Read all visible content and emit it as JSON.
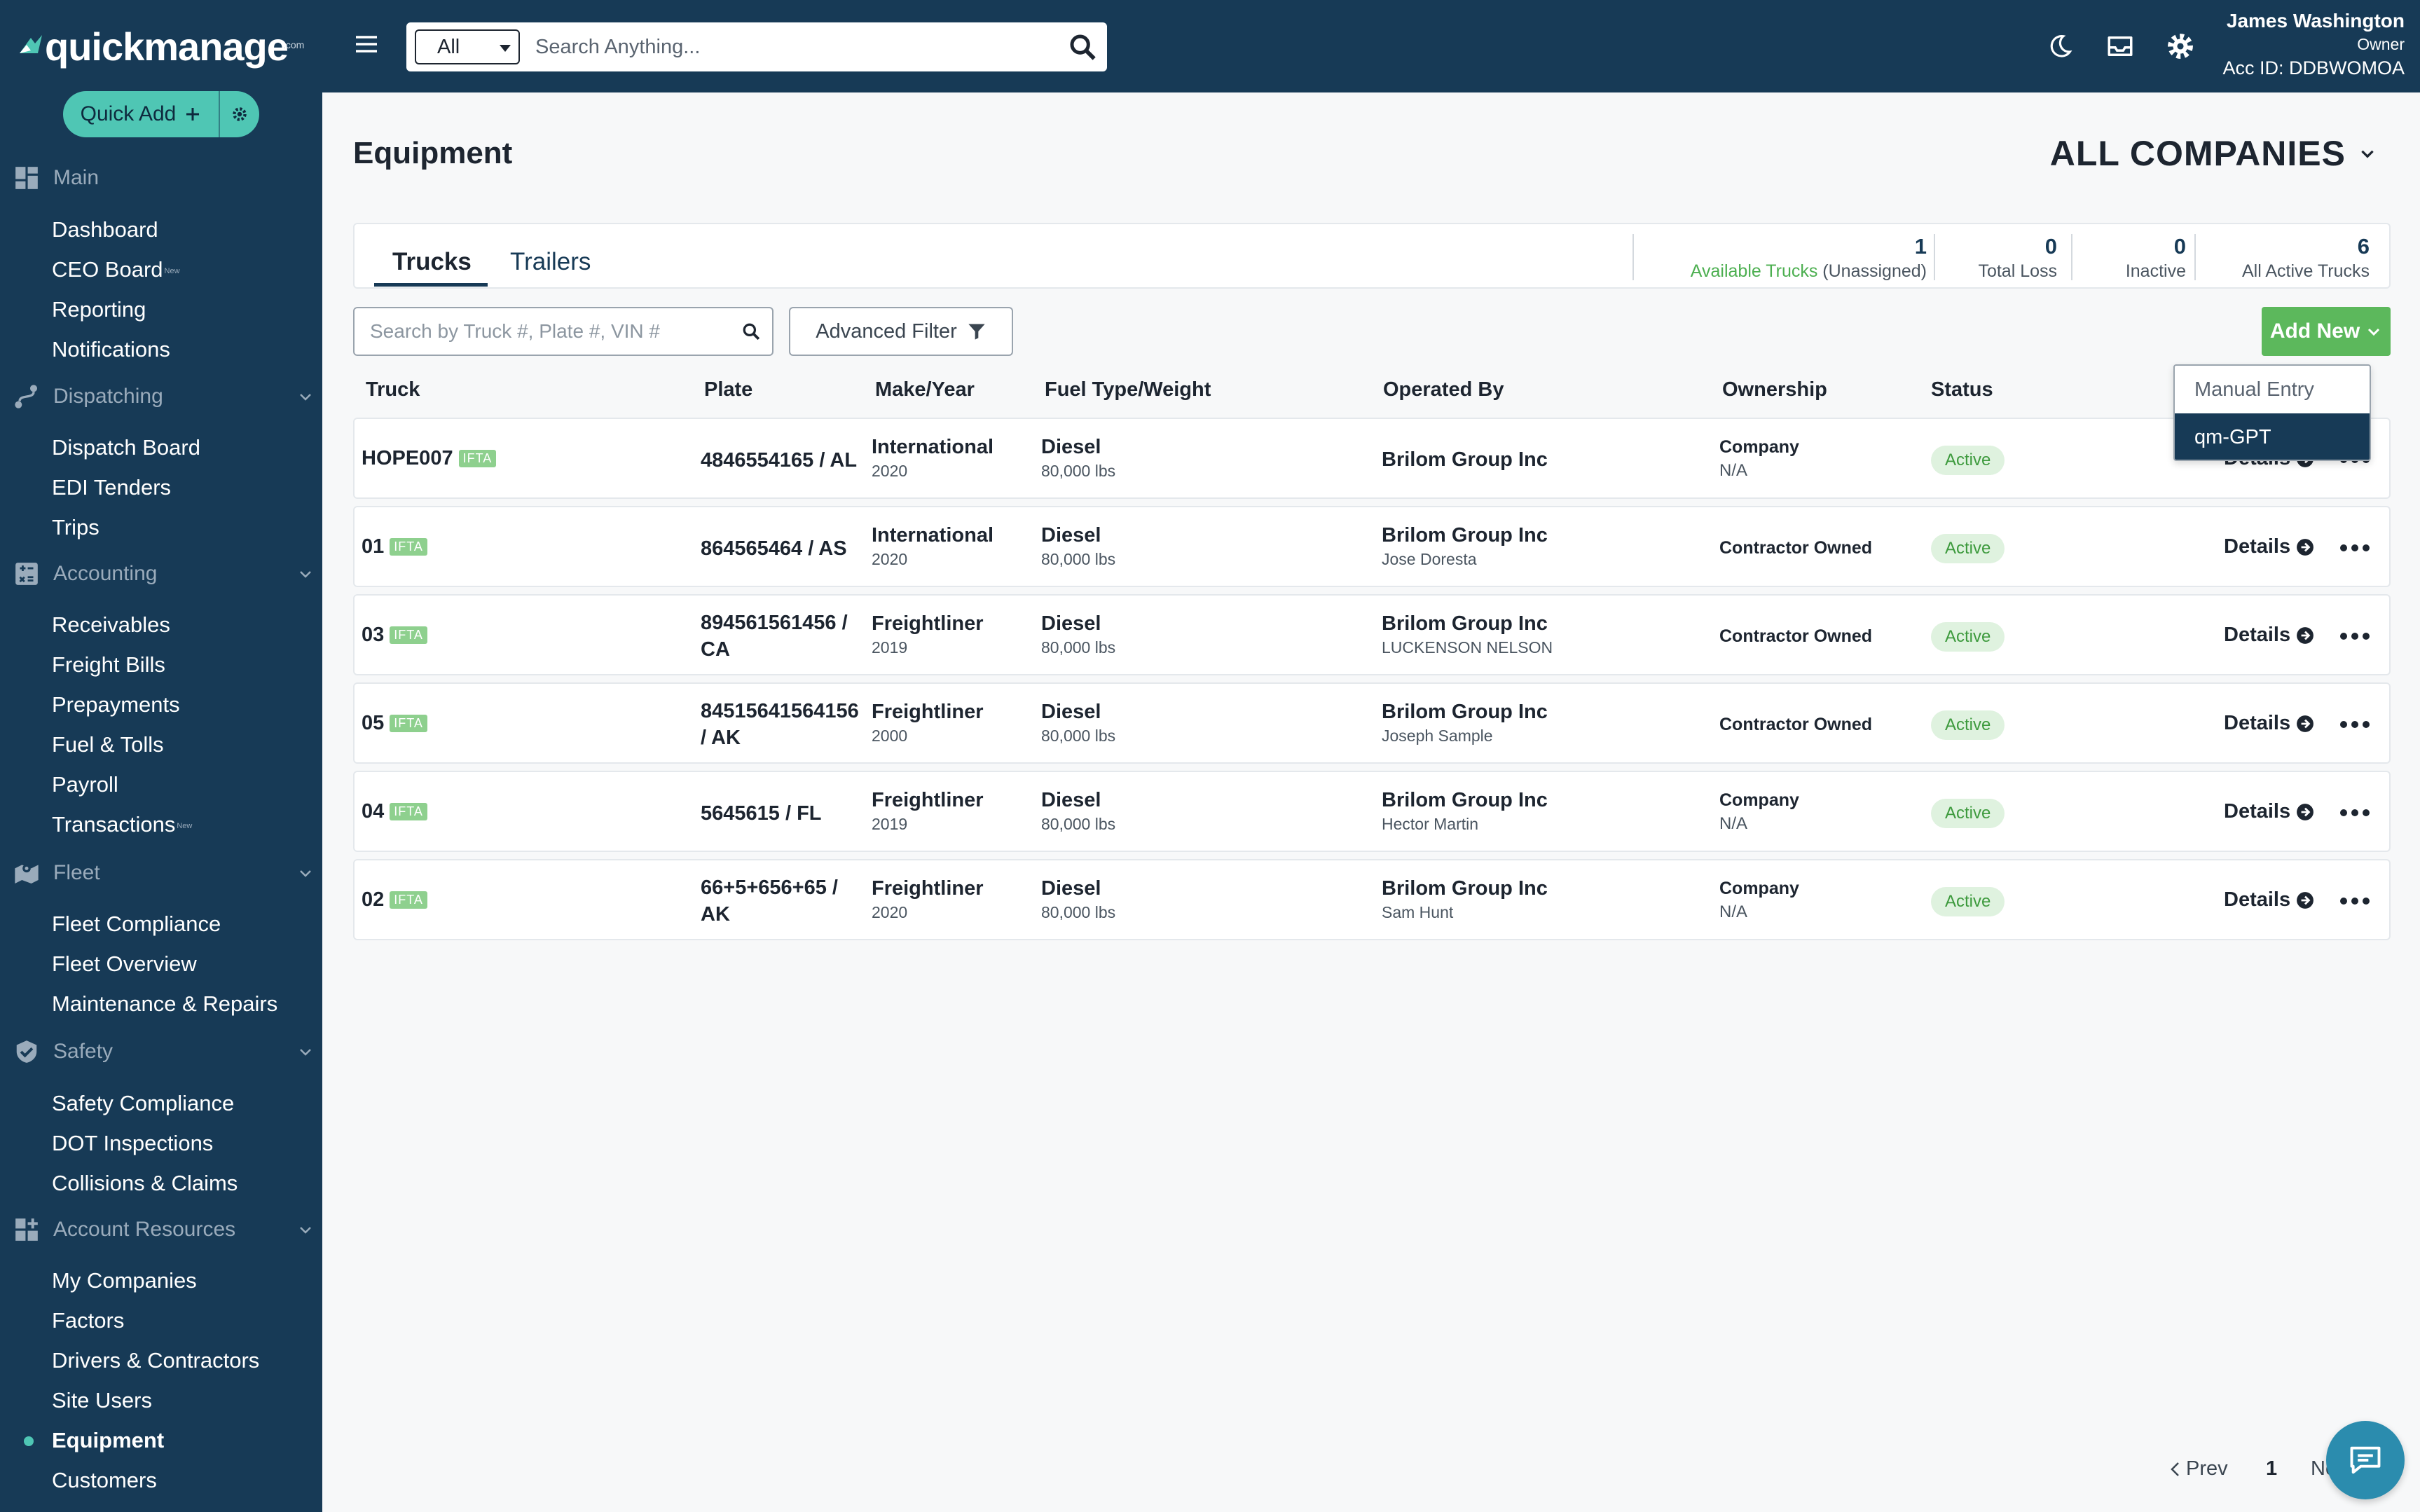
{
  "app": {
    "logo": "quickmanage",
    "logo_suffix": ".com"
  },
  "sidebar": {
    "quick_add_label": "Quick Add",
    "sections": [
      {
        "label": "Main",
        "items": [
          "Dashboard",
          "CEO Board",
          "Reporting",
          "Notifications"
        ]
      },
      {
        "label": "Dispatching",
        "items": [
          "Dispatch Board",
          "EDI Tenders",
          "Trips"
        ]
      },
      {
        "label": "Accounting",
        "items": [
          "Receivables",
          "Freight Bills",
          "Prepayments",
          "Fuel & Tolls",
          "Payroll",
          "Transactions"
        ]
      },
      {
        "label": "Fleet",
        "items": [
          "Fleet Compliance",
          "Fleet Overview",
          "Maintenance & Repairs"
        ]
      },
      {
        "label": "Safety",
        "items": [
          "Safety Compliance",
          "DOT Inspections",
          "Collisions & Claims"
        ]
      },
      {
        "label": "Account Resources",
        "items": [
          "My Companies",
          "Factors",
          "Drivers & Contractors",
          "Site Users",
          "Equipment",
          "Customers"
        ]
      }
    ],
    "new_badge": "New",
    "active_item": "Equipment"
  },
  "topbar": {
    "search_scope": "All",
    "search_placeholder": "Search Anything...",
    "user_name": "James Washington",
    "user_role": "Owner",
    "account_id": "Acc ID: DDBWOMOA"
  },
  "page": {
    "title": "Equipment",
    "company_selector": "ALL COMPANIES",
    "tabs": [
      "Trucks",
      "Trailers"
    ],
    "stats": [
      {
        "value": "1",
        "label_green": "Available Trucks",
        "label": " (Unassigned)"
      },
      {
        "value": "0",
        "label": "Total Loss"
      },
      {
        "value": "0",
        "label": "Inactive"
      },
      {
        "value": "6",
        "label": "All Active Trucks"
      }
    ],
    "truck_search_placeholder": "Search by Truck #, Plate #, VIN #",
    "advanced_filter_label": "Advanced Filter",
    "add_new_label": "Add New",
    "add_new_menu": [
      "Manual Entry",
      "qm-GPT"
    ]
  },
  "table": {
    "headers": [
      "Truck",
      "Plate",
      "Make/Year",
      "Fuel Type/Weight",
      "Operated By",
      "Ownership",
      "Status"
    ],
    "ifta_tag": "IFTA",
    "details_label": "Details",
    "rows": [
      {
        "truck": "HOPE007",
        "plate1": "4846554165 / AL",
        "plate2": "",
        "make": "International",
        "year": "2020",
        "fuel": "Diesel",
        "weight": "80,000 lbs",
        "operator": "Brilom Group Inc",
        "driver": "",
        "ownership1": "Company",
        "ownership2": "N/A",
        "status": "Active"
      },
      {
        "truck": "01",
        "plate1": "864565464 / AS",
        "plate2": "",
        "make": "International",
        "year": "2020",
        "fuel": "Diesel",
        "weight": "80,000 lbs",
        "operator": "Brilom Group Inc",
        "driver": "Jose Doresta",
        "ownership1": "Contractor Owned",
        "ownership2": "",
        "status": "Active"
      },
      {
        "truck": "03",
        "plate1": "894561561456 /",
        "plate2": "CA",
        "make": "Freightliner",
        "year": "2019",
        "fuel": "Diesel",
        "weight": "80,000 lbs",
        "operator": "Brilom Group Inc",
        "driver": "LUCKENSON NELSON",
        "ownership1": "Contractor Owned",
        "ownership2": "",
        "status": "Active"
      },
      {
        "truck": "05",
        "plate1": "84515641564156",
        "plate2": "/ AK",
        "make": "Freightliner",
        "year": "2000",
        "fuel": "Diesel",
        "weight": "80,000 lbs",
        "operator": "Brilom Group Inc",
        "driver": "Joseph Sample",
        "ownership1": "Contractor Owned",
        "ownership2": "",
        "status": "Active"
      },
      {
        "truck": "04",
        "plate1": "5645615 / FL",
        "plate2": "",
        "make": "Freightliner",
        "year": "2019",
        "fuel": "Diesel",
        "weight": "80,000 lbs",
        "operator": "Brilom Group Inc",
        "driver": "Hector Martin",
        "ownership1": "Company",
        "ownership2": "N/A",
        "status": "Active"
      },
      {
        "truck": "02",
        "plate1": "66+5+656+65 /",
        "plate2": "AK",
        "make": "Freightliner",
        "year": "2020",
        "fuel": "Diesel",
        "weight": "80,000 lbs",
        "operator": "Brilom Group Inc",
        "driver": "Sam Hunt",
        "ownership1": "Company",
        "ownership2": "N/A",
        "status": "Active"
      }
    ]
  },
  "pagination": {
    "prev": "Prev",
    "page": "1",
    "next": "Ne"
  },
  "colors": {
    "sidebar_bg": "#173a56",
    "accent_teal": "#4fc6b4",
    "success_green": "#5cb85c"
  }
}
